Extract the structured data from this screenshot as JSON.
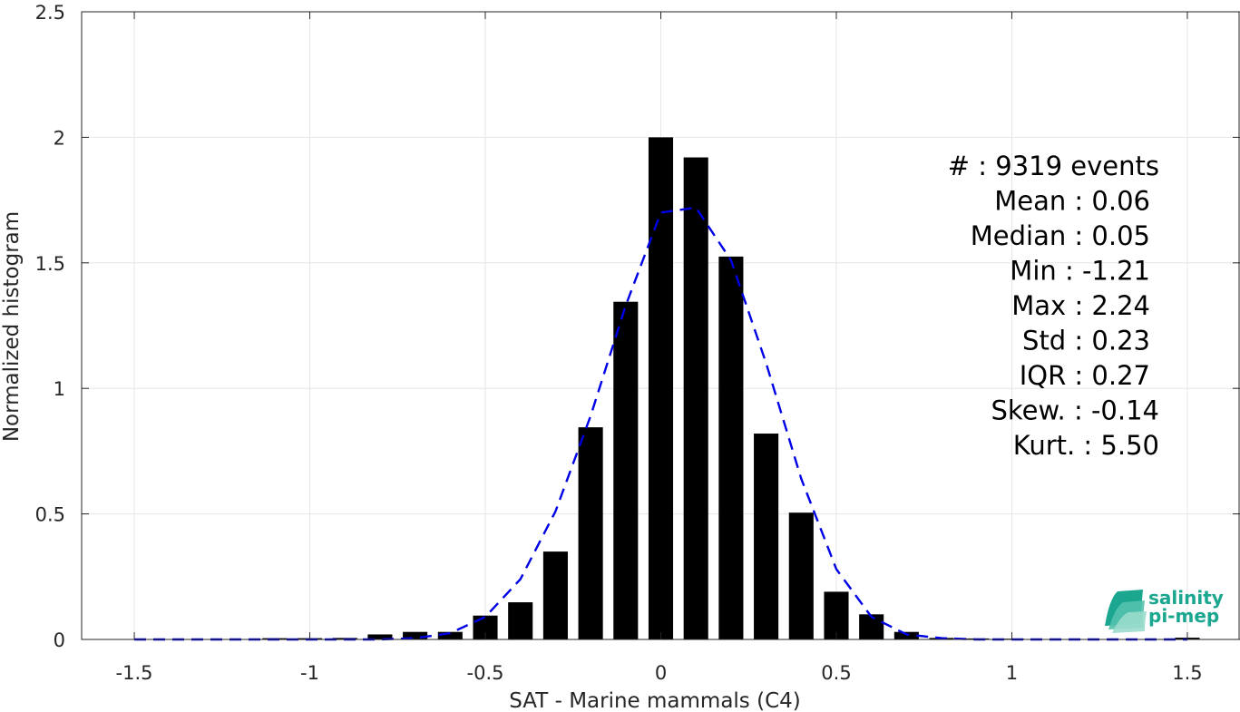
{
  "chart_data": {
    "type": "bar",
    "xlabel": "SAT - Marine mammals (C4)",
    "ylabel": "Normalized histogram",
    "xlim": [
      -1.65,
      1.65
    ],
    "ylim": [
      0,
      2.5
    ],
    "xticks": [
      -1.5,
      -1,
      -0.5,
      0,
      0.5,
      1,
      1.5
    ],
    "yticks": [
      0,
      0.5,
      1,
      1.5,
      2,
      2.5
    ],
    "xtick_labels": [
      "-1.5",
      "-1",
      "-0.5",
      "0",
      "0.5",
      "1",
      "1.5"
    ],
    "ytick_labels": [
      "0",
      "0.5",
      "1",
      "1.5",
      "2",
      "2.5"
    ],
    "grid": true,
    "bar_width": 0.07,
    "bars": {
      "x": [
        -1.1,
        -1.0,
        -0.9,
        -0.8,
        -0.7,
        -0.6,
        -0.5,
        -0.4,
        -0.3,
        -0.2,
        -0.1,
        0.0,
        0.1,
        0.2,
        0.3,
        0.4,
        0.5,
        0.6,
        0.7,
        0.8,
        0.9,
        1.0,
        1.5
      ],
      "values": [
        0.005,
        0.005,
        0.006,
        0.02,
        0.03,
        0.03,
        0.095,
        0.148,
        0.35,
        0.845,
        1.345,
        2.0,
        1.92,
        1.525,
        0.82,
        0.505,
        0.19,
        0.1,
        0.03,
        0.006,
        0.004,
        0.003,
        0.007
      ],
      "color": "#000000"
    },
    "fit_line": {
      "style": "dashed",
      "color": "#0000e6",
      "x": [
        -1.5,
        -1.0,
        -0.9,
        -0.8,
        -0.7,
        -0.6,
        -0.5,
        -0.4,
        -0.3,
        -0.2,
        -0.1,
        0.0,
        0.1,
        0.2,
        0.3,
        0.4,
        0.5,
        0.6,
        0.7,
        0.8,
        0.9,
        1.0,
        1.5
      ],
      "y": [
        0.0,
        0.0,
        0.0,
        0.0,
        0.005,
        0.025,
        0.09,
        0.24,
        0.51,
        0.89,
        1.33,
        1.7,
        1.72,
        1.51,
        1.1,
        0.64,
        0.28,
        0.09,
        0.02,
        0.005,
        0.0,
        0.0,
        0.0
      ]
    },
    "stats_lines": [
      "#  : 9319 events",
      "Mean : 0.06",
      "Median : 0.05",
      "Min : -1.21",
      "Max : 2.24",
      "Std : 0.23",
      "IQR : 0.27",
      "Skew. : -0.14",
      "Kurt. : 5.50"
    ]
  },
  "logo": {
    "line1": "salinity",
    "line2": "pi-mep",
    "color": "#1aa68f"
  }
}
